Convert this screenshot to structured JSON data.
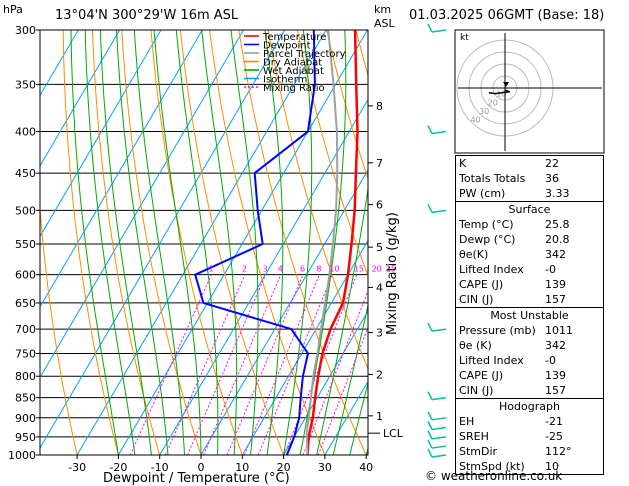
{
  "header": {
    "hpa_label": "hPa",
    "location": "13°04'N  300°29'W  16m  ASL",
    "km_label": "km",
    "asl_label": "ASL",
    "datetime": "01.03.2025  06GMT  (Base: 18)"
  },
  "legend": [
    {
      "label": "Temperature",
      "color": "#ff0000",
      "dash": ""
    },
    {
      "label": "Dewpoint",
      "color": "#0000ff",
      "dash": ""
    },
    {
      "label": "Parcel Trajectory",
      "color": "#a0a0a0",
      "dash": ""
    },
    {
      "label": "Dry Adiabat",
      "color": "#ff8c00",
      "dash": ""
    },
    {
      "label": "Wet Adiabat",
      "color": "#00aa00",
      "dash": ""
    },
    {
      "label": "Isotherm",
      "color": "#00a0ff",
      "dash": ""
    },
    {
      "label": "Mixing Ratio",
      "color": "#ff00ff",
      "dash": "2,2"
    }
  ],
  "axes": {
    "xlabel": "Dewpoint / Temperature (°C)",
    "mixing_ratio_axis_label": "Mixing Ratio (g/kg)",
    "pressure_levels": [
      300,
      350,
      400,
      450,
      500,
      550,
      600,
      650,
      700,
      750,
      800,
      850,
      900,
      950,
      1000
    ],
    "temperature_ticks": [
      -30,
      -20,
      -10,
      0,
      10,
      20,
      30,
      40
    ],
    "km_ticks": [
      {
        "label": "8",
        "p": 372
      },
      {
        "label": "7",
        "p": 437
      },
      {
        "label": "6",
        "p": 492
      },
      {
        "label": "5",
        "p": 555
      },
      {
        "label": "4",
        "p": 622
      },
      {
        "label": "3",
        "p": 707
      },
      {
        "label": "2",
        "p": 796
      },
      {
        "label": "1",
        "p": 895
      }
    ],
    "lcl_label": "LCL",
    "lcl_p": 940,
    "mixing_ratio_labels": [
      "1",
      "2",
      "3",
      "4",
      "6",
      "8",
      "10",
      "15",
      "20",
      "25"
    ],
    "mixing_ratio_values": [
      1,
      2,
      3,
      4,
      6,
      8,
      10,
      15,
      20,
      25
    ]
  },
  "chart_data": {
    "type": "line",
    "title": "13°04'N  300°29'W  16m  ASL",
    "xlabel": "Dewpoint / Temperature (°C)",
    "ylabel": "hPa",
    "xlim": [
      -35,
      40
    ],
    "ylim": [
      1000,
      300
    ],
    "series": [
      {
        "name": "Temperature",
        "color": "#ff0000",
        "points": [
          [
            25.8,
            1000
          ],
          [
            23.5,
            950
          ],
          [
            21.8,
            900
          ],
          [
            19.5,
            850
          ],
          [
            17.2,
            800
          ],
          [
            15.0,
            750
          ],
          [
            13.5,
            700
          ],
          [
            12.8,
            650
          ],
          [
            10.0,
            600
          ],
          [
            6.5,
            550
          ],
          [
            2.5,
            500
          ],
          [
            -2.5,
            450
          ],
          [
            -8.0,
            400
          ],
          [
            -15.0,
            350
          ],
          [
            -23.0,
            300
          ]
        ]
      },
      {
        "name": "Dewpoint",
        "color": "#0000ff",
        "points": [
          [
            20.8,
            1000
          ],
          [
            20.0,
            950
          ],
          [
            18.5,
            900
          ],
          [
            16.0,
            850
          ],
          [
            13.5,
            800
          ],
          [
            11.5,
            750
          ],
          [
            4.0,
            700
          ],
          [
            -21.0,
            650
          ],
          [
            -27.0,
            600
          ],
          [
            -15.0,
            550
          ],
          [
            -21.0,
            500
          ],
          [
            -27.0,
            450
          ],
          [
            -20.0,
            400
          ],
          [
            -25.0,
            350
          ],
          [
            -33.0,
            300
          ]
        ]
      },
      {
        "name": "Parcel Trajectory",
        "color": "#a0a0a0",
        "points": [
          [
            25.8,
            1000
          ],
          [
            22.5,
            940
          ],
          [
            20.8,
            900
          ],
          [
            18.5,
            850
          ],
          [
            16.0,
            800
          ],
          [
            13.8,
            750
          ],
          [
            11.2,
            700
          ],
          [
            8.5,
            650
          ],
          [
            5.5,
            600
          ],
          [
            2.0,
            550
          ],
          [
            -2.0,
            500
          ],
          [
            -7.0,
            450
          ],
          [
            -13.0,
            400
          ],
          [
            -20.5,
            350
          ],
          [
            -29.5,
            300
          ]
        ]
      }
    ]
  },
  "hodograph": {
    "label": "kt",
    "rings": [
      "10",
      "20",
      "30",
      "40"
    ],
    "points": [
      [
        0,
        0
      ],
      [
        3,
        -2
      ],
      [
        -2,
        -3
      ],
      [
        -6,
        -4
      ],
      [
        -10,
        -3
      ]
    ]
  },
  "indices": {
    "rows": [
      {
        "label": "K",
        "value": "22"
      },
      {
        "label": "Totals Totals",
        "value": "36"
      },
      {
        "label": "PW (cm)",
        "value": "3.33"
      }
    ]
  },
  "surface": {
    "title": "Surface",
    "rows": [
      {
        "label": "Temp (°C)",
        "value": "25.8"
      },
      {
        "label": "Dewp (°C)",
        "value": "20.8"
      },
      {
        "label": "θe(K)",
        "value": "342"
      },
      {
        "label": "Lifted Index",
        "value": "-0"
      },
      {
        "label": "CAPE (J)",
        "value": "139"
      },
      {
        "label": "CIN (J)",
        "value": "157"
      }
    ]
  },
  "most_unstable": {
    "title": "Most Unstable",
    "rows": [
      {
        "label": "Pressure (mb)",
        "value": "1011"
      },
      {
        "label": "θe (K)",
        "value": "342"
      },
      {
        "label": "Lifted Index",
        "value": "-0"
      },
      {
        "label": "CAPE (J)",
        "value": "139"
      },
      {
        "label": "CIN (J)",
        "value": "157"
      }
    ]
  },
  "hodograph_table": {
    "title": "Hodograph",
    "rows": [
      {
        "label": "EH",
        "value": "-21"
      },
      {
        "label": "SREH",
        "value": "-25"
      },
      {
        "label": "StmDir",
        "value": "112°"
      },
      {
        "label": "StmSpd (kt)",
        "value": "10"
      }
    ]
  },
  "footer": "© weatheronline.co.uk",
  "colors": {
    "isotherm": "#00a0ff",
    "dry_adiabat": "#ff8c00",
    "wet_adiabat": "#00aa00",
    "mixing_ratio": "#ff00ff",
    "wind_barb": "#00c0a0"
  }
}
